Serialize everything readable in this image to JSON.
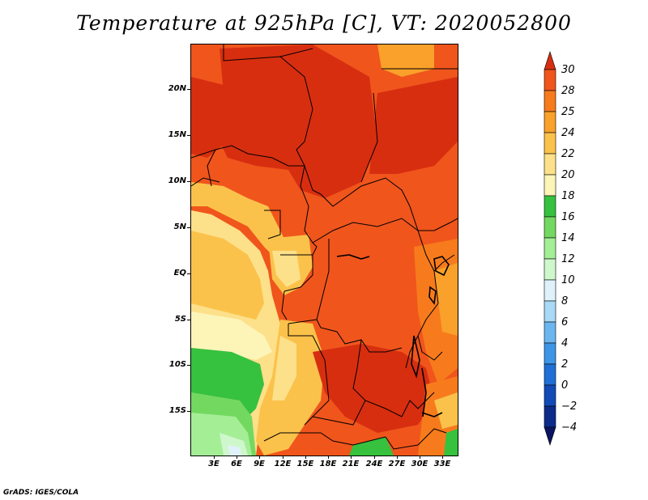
{
  "title": "Temperature at 925hPa [C], VT: 2020052800",
  "credit": "GrADS: IGES/COLA",
  "lat_labels": [
    "20N",
    "15N",
    "10N",
    "5N",
    "EQ",
    "5S",
    "10S",
    "15S"
  ],
  "lon_labels": [
    "3E",
    "6E",
    "9E",
    "12E",
    "15E",
    "18E",
    "21E",
    "24E",
    "27E",
    "30E",
    "33E"
  ],
  "colorbar": {
    "labels": [
      "30",
      "28",
      "25",
      "24",
      "22",
      "20",
      "18",
      "16",
      "14",
      "12",
      "10",
      "8",
      "6",
      "4",
      "2",
      "0",
      "−2",
      "−4"
    ],
    "colors": [
      "#d72e10",
      "#f0551c",
      "#f77b1c",
      "#f9a12a",
      "#fbc24b",
      "#fde08a",
      "#fdf5b8",
      "#36c13f",
      "#73d860",
      "#a4ee96",
      "#cff7cc",
      "#dff2fb",
      "#a9d9f7",
      "#6cb6ef",
      "#3d95e8",
      "#1f6fd6",
      "#124bb8",
      "#0c2b8a",
      "#0a1560"
    ]
  }
}
